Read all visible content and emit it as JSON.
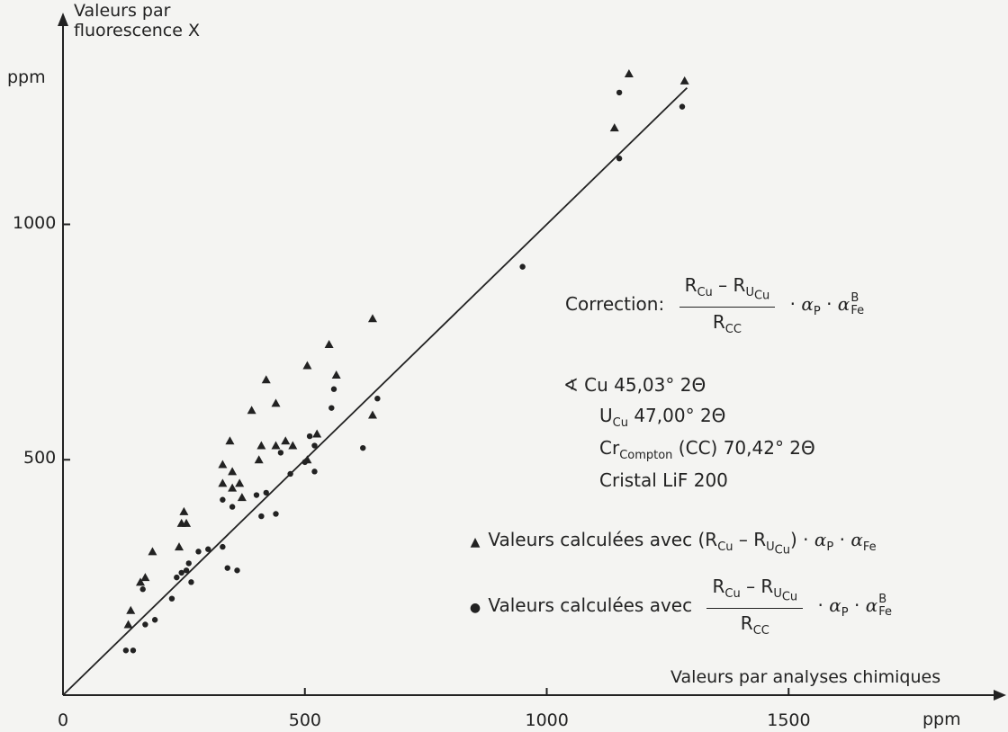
{
  "chart_data": {
    "type": "scatter",
    "ylabel": "Valeurs par fluorescence X",
    "xlabel": "Valeurs par analyses chimiques",
    "y_unit": "ppm",
    "x_unit": "ppm",
    "x_ticks": [
      "0",
      "500",
      "1000",
      "1500"
    ],
    "y_ticks": [
      "500",
      "1000"
    ],
    "xlim": [
      0,
      1950
    ],
    "ylim": [
      0,
      1350
    ],
    "reference_line": [
      [
        0,
        0
      ],
      [
        1290,
        1290
      ]
    ],
    "series": [
      {
        "name": "Valeurs calculées avec (R_Cu − R_U_Cu) · α_P · α_Fe",
        "marker": "triangle",
        "points": [
          [
            1170,
            1320
          ],
          [
            1285,
            1305
          ],
          [
            1140,
            1205
          ],
          [
            640,
            800
          ],
          [
            550,
            745
          ],
          [
            505,
            700
          ],
          [
            565,
            680
          ],
          [
            420,
            670
          ],
          [
            440,
            620
          ],
          [
            640,
            595
          ],
          [
            390,
            605
          ],
          [
            345,
            540
          ],
          [
            410,
            530
          ],
          [
            440,
            530
          ],
          [
            460,
            540
          ],
          [
            475,
            530
          ],
          [
            525,
            555
          ],
          [
            330,
            490
          ],
          [
            405,
            500
          ],
          [
            505,
            500
          ],
          [
            330,
            450
          ],
          [
            350,
            475
          ],
          [
            365,
            450
          ],
          [
            350,
            440
          ],
          [
            370,
            420
          ],
          [
            250,
            390
          ],
          [
            245,
            365
          ],
          [
            255,
            365
          ],
          [
            240,
            315
          ],
          [
            185,
            305
          ],
          [
            170,
            250
          ],
          [
            160,
            240
          ],
          [
            140,
            180
          ],
          [
            135,
            150
          ]
        ]
      },
      {
        "name": "Valeurs calculées avec (R_Cu − R_U_Cu)/R_CC · α_P · α_Fe^B",
        "marker": "dot",
        "points": [
          [
            1150,
            1280
          ],
          [
            1280,
            1250
          ],
          [
            1150,
            1140
          ],
          [
            950,
            910
          ],
          [
            650,
            630
          ],
          [
            560,
            650
          ],
          [
            555,
            610
          ],
          [
            510,
            550
          ],
          [
            520,
            530
          ],
          [
            620,
            525
          ],
          [
            450,
            515
          ],
          [
            470,
            470
          ],
          [
            500,
            495
          ],
          [
            520,
            475
          ],
          [
            300,
            310
          ],
          [
            280,
            305
          ],
          [
            260,
            280
          ],
          [
            255,
            265
          ],
          [
            245,
            260
          ],
          [
            265,
            240
          ],
          [
            235,
            250
          ],
          [
            330,
            315
          ],
          [
            330,
            415
          ],
          [
            350,
            400
          ],
          [
            400,
            425
          ],
          [
            420,
            430
          ],
          [
            410,
            380
          ],
          [
            440,
            385
          ],
          [
            340,
            270
          ],
          [
            360,
            265
          ],
          [
            225,
            205
          ],
          [
            190,
            160
          ],
          [
            170,
            150
          ],
          [
            165,
            225
          ],
          [
            130,
            95
          ],
          [
            145,
            95
          ]
        ]
      }
    ],
    "grid": false,
    "legend_position": "right"
  },
  "annotations": {
    "correction_label": "Correction:",
    "r_cu": "R",
    "cu": "Cu",
    "minus": "–",
    "u": "U",
    "cc": "CC",
    "alpha": "α",
    "p": "P",
    "fe": "Fe",
    "b": "B",
    "dot": "·",
    "angle_cu": "∢ Cu  45,03° 2Θ",
    "angle_u_prefix": "U",
    "angle_u_suffix": " 47,00° 2Θ",
    "angle_cr_prefix": "Cr",
    "angle_cr_sub": "Compton",
    "angle_cr_suffix": " (CC)  70,42° 2Θ",
    "cristal": "Cristal  LiF 200",
    "legend_prefix": "Valeurs calculées avec"
  }
}
